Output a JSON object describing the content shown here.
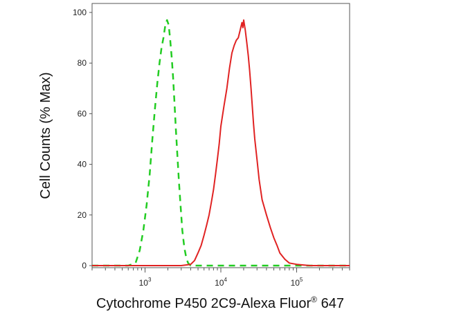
{
  "chart_data": {
    "type": "line",
    "ylabel": "Cell Counts (% Max)",
    "xlabel": "Cytochrome P450 2C9-Alexa Fluor",
    "xlabel_superscript": "®",
    "xlabel_suffix": " 647",
    "x_scale": "log",
    "xlim": [
      200,
      500000
    ],
    "ylim": [
      0,
      100
    ],
    "y_ticks": [
      0,
      20,
      40,
      60,
      80,
      100
    ],
    "x_ticks": [
      {
        "value": 1000,
        "base": "10",
        "exp": "3"
      },
      {
        "value": 10000,
        "base": "10",
        "exp": "4"
      },
      {
        "value": 100000,
        "base": "10",
        "exp": "5"
      }
    ],
    "grid": false,
    "legend": "none",
    "series": [
      {
        "color": "#22cc22",
        "style": "dashed",
        "x": [
          200,
          600,
          750,
          850,
          950,
          1050,
          1150,
          1250,
          1350,
          1450,
          1550,
          1650,
          1750,
          1850,
          1950,
          2050,
          2150,
          2250,
          2350,
          2450,
          2550,
          2650,
          2800,
          2950,
          3100,
          3300,
          3500,
          3700,
          4000,
          5000,
          20000,
          100000,
          500000
        ],
        "y": [
          0,
          0,
          1,
          6,
          14,
          24,
          36,
          50,
          62,
          72,
          80,
          86,
          90,
          95,
          97,
          95,
          89,
          82,
          74,
          64,
          54,
          45,
          33,
          23,
          14,
          7,
          3,
          1,
          0,
          0,
          0,
          0,
          0
        ]
      },
      {
        "color": "#e02222",
        "style": "solid",
        "x": [
          200,
          3000,
          4000,
          4500,
          5000,
          5500,
          6000,
          6500,
          7000,
          7500,
          8000,
          8500,
          9000,
          9500,
          10000,
          11000,
          12000,
          13000,
          14000,
          15000,
          16000,
          17000,
          18000,
          19000,
          19500,
          20000,
          21000,
          22000,
          23000,
          24000,
          25000,
          26000,
          27000,
          28000,
          30000,
          32000,
          35000,
          40000,
          45000,
          50000,
          55000,
          60000,
          70000,
          80000,
          100000,
          150000,
          500000
        ],
        "y": [
          0,
          0,
          0.5,
          2,
          5,
          8,
          12,
          16,
          20,
          25,
          30,
          36,
          42,
          48,
          55,
          63,
          70,
          78,
          84,
          87,
          89,
          90,
          93,
          96,
          94,
          97,
          93,
          88,
          83,
          77,
          70,
          63,
          56,
          50,
          42,
          34,
          26,
          20,
          15,
          11,
          8,
          5,
          2.5,
          1,
          0.5,
          0,
          0
        ]
      }
    ]
  }
}
